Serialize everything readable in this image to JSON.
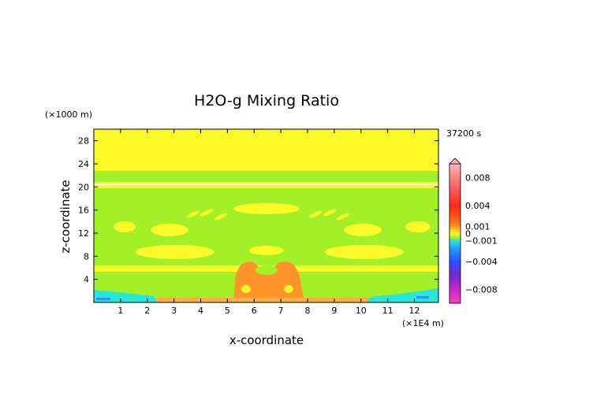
{
  "chart_data": {
    "type": "heatmap",
    "title": "H2O-g Mixing Ratio",
    "xlabel": "x-coordinate",
    "ylabel": "z-coordinate",
    "x_unit": "(×1E4 m)",
    "y_unit": "(×1000 m)",
    "time_label": "37200 s",
    "xlim": [
      0,
      12.9
    ],
    "ylim": [
      0,
      30
    ],
    "x_ticks": [
      "1",
      "2",
      "3",
      "4",
      "5",
      "6",
      "7",
      "8",
      "9",
      "10",
      "11",
      "12"
    ],
    "y_ticks": [
      "4",
      "8",
      "12",
      "16",
      "20",
      "24",
      "28"
    ],
    "colorbar": {
      "range": [
        -0.01,
        0.01
      ],
      "labels": [
        {
          "text": "0.008",
          "value": 0.008
        },
        {
          "text": "0.004",
          "value": 0.004
        },
        {
          "text": "0.001",
          "value": 0.001
        },
        {
          "text": "0",
          "value": 0
        },
        {
          "text": "−0.001",
          "value": -0.001
        },
        {
          "text": "−0.004",
          "value": -0.004
        },
        {
          "text": "−0.008",
          "value": -0.008
        }
      ]
    },
    "palette": {
      "yellow": "#fafa28",
      "lightgreen": "#a4f028",
      "orange": "#ff9428",
      "orange_light": "#ffb040",
      "cyan": "#28e6d8",
      "blue": "#2896ff"
    }
  }
}
